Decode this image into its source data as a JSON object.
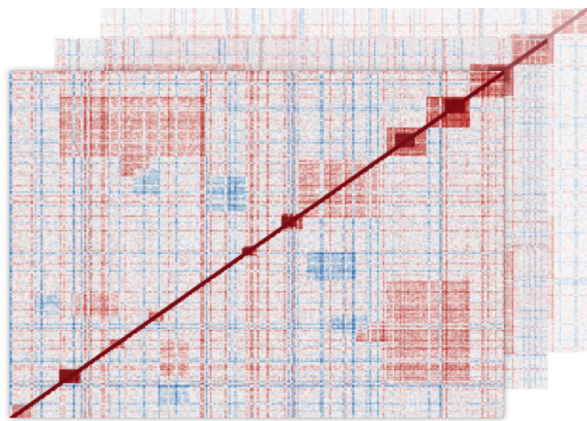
{
  "figure": {
    "kind": "stacked correlation heatmaps",
    "layers": 3,
    "colormap": {
      "negative": "#2f6fae",
      "neutral": "#f4f2f1",
      "positive": "#b3261e",
      "diagonal": "#7a0a14"
    }
  }
}
